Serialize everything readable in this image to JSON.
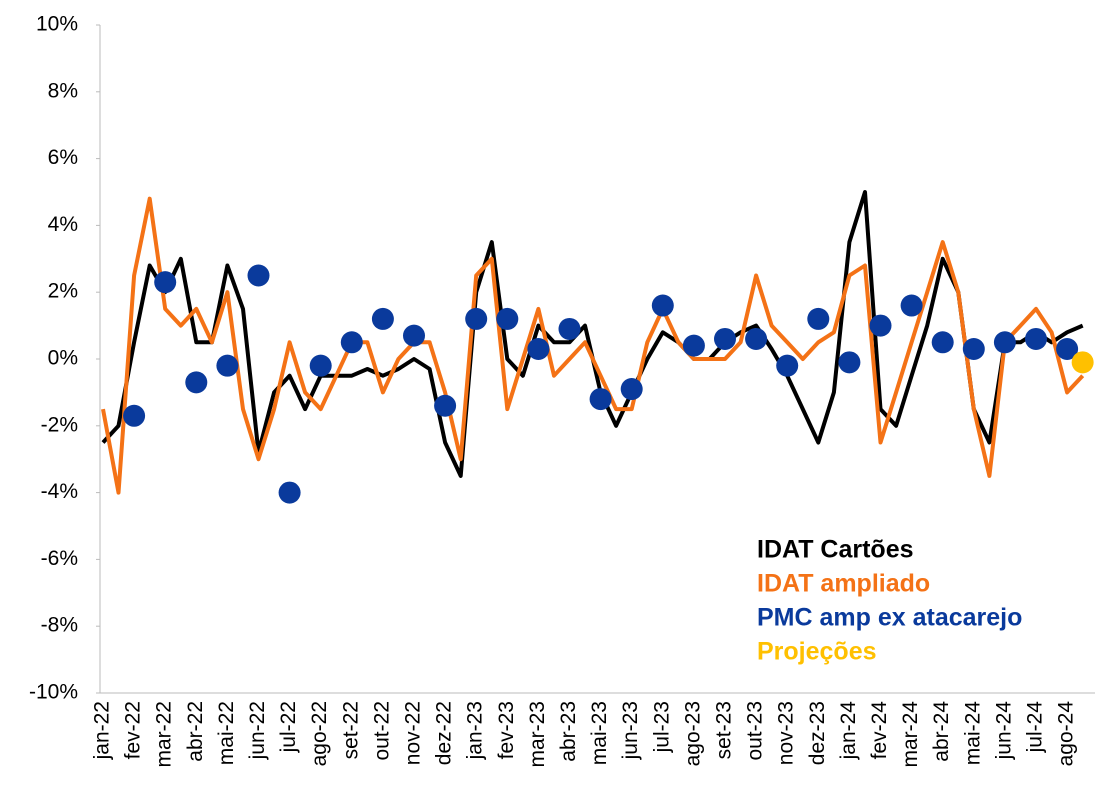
{
  "chart_data": {
    "type": "line",
    "categories": [
      "jan-22",
      null,
      "fev-22",
      null,
      "mar-22",
      null,
      "abr-22",
      null,
      "mai-22",
      null,
      "jun-22",
      null,
      "jul-22",
      null,
      "ago-22",
      null,
      "set-22",
      null,
      "out-22",
      null,
      "nov-22",
      null,
      "dez-22",
      null,
      "jan-23",
      null,
      "fev-23",
      null,
      "mar-23",
      null,
      "abr-23",
      null,
      "mai-23",
      null,
      "jun-23",
      null,
      "jul-23",
      null,
      "ago-23",
      null,
      "set-23",
      null,
      "out-23",
      null,
      "nov-23",
      null,
      "dez-23",
      null,
      "jan-24",
      null,
      "fev-24",
      null,
      "mar-24",
      null,
      "abr-24",
      null,
      "mai-24",
      null,
      "jun-24",
      null,
      "jul-24",
      null,
      "ago-24",
      null
    ],
    "series": [
      {
        "name": "IDAT Cartões",
        "type": "line",
        "color": "#000000",
        "values": [
          -2.5,
          -2.0,
          0.5,
          2.8,
          2.0,
          3.0,
          0.5,
          0.5,
          2.8,
          1.5,
          -2.8,
          -1.0,
          -0.5,
          -1.5,
          -0.5,
          -0.5,
          -0.5,
          -0.3,
          -0.5,
          -0.3,
          0.0,
          -0.3,
          -2.5,
          -3.5,
          2.0,
          3.5,
          0.0,
          -0.5,
          1.0,
          0.5,
          0.5,
          1.0,
          -1.0,
          -2.0,
          -1.0,
          0.0,
          0.8,
          0.5,
          0.0,
          0.0,
          0.5,
          0.8,
          1.0,
          0.3,
          -0.5,
          -1.5,
          -2.5,
          -1.0,
          3.5,
          5.0,
          -1.5,
          -2.0,
          -0.5,
          1.0,
          3.0,
          2.0,
          -1.5,
          -2.5,
          0.5,
          0.5,
          0.8,
          0.5,
          0.8,
          1.0
        ]
      },
      {
        "name": "IDAT ampliado",
        "type": "line",
        "color": "#f47216",
        "values": [
          -1.5,
          -4.0,
          2.5,
          4.8,
          1.5,
          1.0,
          1.5,
          0.5,
          2.0,
          -1.5,
          -3.0,
          -1.5,
          0.5,
          -1.0,
          -1.5,
          -0.5,
          0.5,
          0.5,
          -1.0,
          0.0,
          0.5,
          0.5,
          -1.0,
          -3.0,
          2.5,
          3.0,
          -1.5,
          0.0,
          1.5,
          -0.5,
          0.0,
          0.5,
          -0.5,
          -1.5,
          -1.5,
          0.5,
          1.5,
          0.5,
          0.0,
          0.0,
          0.0,
          0.5,
          2.5,
          1.0,
          0.5,
          0.0,
          0.5,
          0.8,
          2.5,
          2.8,
          -2.5,
          -1.0,
          0.5,
          2.0,
          3.5,
          2.0,
          -1.5,
          -3.5,
          0.5,
          1.0,
          1.5,
          0.8,
          -1.0,
          -0.5
        ]
      },
      {
        "name": "PMC amp ex atacarejo",
        "type": "scatter",
        "color": "#0a3a9c",
        "values": [
          null,
          null,
          -1.7,
          null,
          2.3,
          null,
          -0.7,
          null,
          -0.2,
          null,
          2.5,
          null,
          -4.0,
          null,
          -0.2,
          null,
          0.5,
          null,
          1.2,
          null,
          0.7,
          null,
          -1.4,
          null,
          1.2,
          null,
          1.2,
          null,
          0.3,
          null,
          0.9,
          null,
          -1.2,
          null,
          -0.9,
          null,
          1.6,
          null,
          0.4,
          null,
          0.6,
          null,
          0.6,
          null,
          -0.2,
          null,
          1.2,
          null,
          -0.1,
          null,
          1.0,
          null,
          1.6,
          null,
          0.5,
          null,
          0.3,
          null,
          0.5,
          null,
          0.6,
          null,
          0.3,
          null
        ]
      },
      {
        "name": "Projeções",
        "type": "scatter",
        "color": "#ffc000",
        "values": [
          null,
          null,
          null,
          null,
          null,
          null,
          null,
          null,
          null,
          null,
          null,
          null,
          null,
          null,
          null,
          null,
          null,
          null,
          null,
          null,
          null,
          null,
          null,
          null,
          null,
          null,
          null,
          null,
          null,
          null,
          null,
          null,
          null,
          null,
          null,
          null,
          null,
          null,
          null,
          null,
          null,
          null,
          null,
          null,
          null,
          null,
          null,
          null,
          null,
          null,
          null,
          null,
          null,
          null,
          null,
          null,
          null,
          null,
          null,
          null,
          null,
          null,
          null,
          -0.1
        ]
      }
    ],
    "ylim": [
      -10,
      10
    ],
    "yticks": [
      {
        "value": -10,
        "label": "-10%"
      },
      {
        "value": -8,
        "label": "-8%"
      },
      {
        "value": -6,
        "label": "-6%"
      },
      {
        "value": -4,
        "label": "-4%"
      },
      {
        "value": -2,
        "label": "-2%"
      },
      {
        "value": 0,
        "label": "0%"
      },
      {
        "value": 2,
        "label": "2%"
      },
      {
        "value": 4,
        "label": "4%"
      },
      {
        "value": 6,
        "label": "6%"
      },
      {
        "value": 8,
        "label": "8%"
      },
      {
        "value": 10,
        "label": "10%"
      }
    ],
    "grid": false,
    "legend": "lower right"
  }
}
